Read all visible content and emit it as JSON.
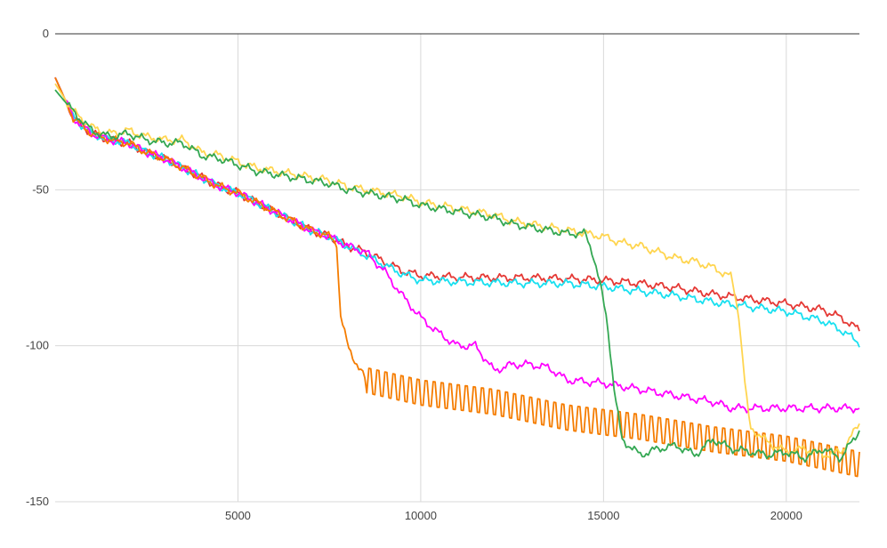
{
  "chart_data": {
    "type": "line",
    "title": "",
    "xlabel": "",
    "ylabel": "",
    "xlim": [
      0,
      22000
    ],
    "ylim": [
      -150,
      0
    ],
    "x_ticks": [
      5000,
      10000,
      15000,
      20000
    ],
    "y_ticks": [
      0,
      -50,
      -100,
      -150
    ],
    "grid": true,
    "legend": "none",
    "series": [
      {
        "color": "#e53935",
        "points": [
          [
            0,
            -14
          ],
          [
            500,
            -27
          ],
          [
            1000,
            -32
          ],
          [
            1500,
            -34
          ],
          [
            2000,
            -35
          ],
          [
            2500,
            -38
          ],
          [
            3000,
            -40
          ],
          [
            3500,
            -43
          ],
          [
            4000,
            -46
          ],
          [
            4500,
            -49
          ],
          [
            5000,
            -51
          ],
          [
            5500,
            -54
          ],
          [
            6000,
            -57
          ],
          [
            6500,
            -60
          ],
          [
            7000,
            -63
          ],
          [
            7500,
            -65
          ],
          [
            8000,
            -68
          ],
          [
            8500,
            -70
          ],
          [
            9000,
            -73
          ],
          [
            9500,
            -76
          ],
          [
            10000,
            -77.5
          ],
          [
            11000,
            -78
          ],
          [
            12000,
            -78.2
          ],
          [
            13000,
            -78.2
          ],
          [
            14000,
            -78.5
          ],
          [
            15000,
            -79
          ],
          [
            16000,
            -80
          ],
          [
            17000,
            -81.5
          ],
          [
            18000,
            -83.5
          ],
          [
            19000,
            -85
          ],
          [
            20000,
            -86.5
          ],
          [
            21000,
            -88.5
          ],
          [
            21500,
            -91
          ],
          [
            22000,
            -95
          ]
        ]
      },
      {
        "color": "#18e0f0",
        "points": [
          [
            0,
            -14
          ],
          [
            500,
            -27
          ],
          [
            1000,
            -32
          ],
          [
            1500,
            -34
          ],
          [
            2000,
            -35
          ],
          [
            2500,
            -38
          ],
          [
            3000,
            -40
          ],
          [
            3500,
            -43
          ],
          [
            4000,
            -46
          ],
          [
            4500,
            -49
          ],
          [
            5000,
            -51
          ],
          [
            5500,
            -54
          ],
          [
            6000,
            -57
          ],
          [
            6500,
            -60
          ],
          [
            7000,
            -63
          ],
          [
            7500,
            -65
          ],
          [
            8000,
            -68
          ],
          [
            8500,
            -71
          ],
          [
            9000,
            -74
          ],
          [
            9500,
            -77
          ],
          [
            10000,
            -79
          ],
          [
            11000,
            -79.5
          ],
          [
            12000,
            -79.8
          ],
          [
            13000,
            -80
          ],
          [
            14000,
            -80
          ],
          [
            15000,
            -81
          ],
          [
            16000,
            -82.5
          ],
          [
            17000,
            -84
          ],
          [
            18000,
            -86
          ],
          [
            19000,
            -87.5
          ],
          [
            20000,
            -89
          ],
          [
            21000,
            -92
          ],
          [
            21500,
            -95
          ],
          [
            22000,
            -99
          ]
        ]
      },
      {
        "color": "#ff00ff",
        "points": [
          [
            0,
            -14
          ],
          [
            500,
            -27
          ],
          [
            1000,
            -32
          ],
          [
            1500,
            -34
          ],
          [
            2000,
            -35
          ],
          [
            2500,
            -38
          ],
          [
            3000,
            -40
          ],
          [
            3500,
            -43
          ],
          [
            4000,
            -46
          ],
          [
            4500,
            -49
          ],
          [
            5000,
            -51
          ],
          [
            5500,
            -54
          ],
          [
            6000,
            -57
          ],
          [
            6500,
            -60
          ],
          [
            7000,
            -63
          ],
          [
            7500,
            -65
          ],
          [
            8000,
            -68
          ],
          [
            8500,
            -70
          ],
          [
            9000,
            -76
          ],
          [
            9500,
            -84
          ],
          [
            10000,
            -91
          ],
          [
            10500,
            -96
          ],
          [
            11000,
            -100
          ],
          [
            11500,
            -100
          ],
          [
            12000,
            -108
          ],
          [
            12500,
            -106
          ],
          [
            13000,
            -106
          ],
          [
            13500,
            -107
          ],
          [
            14000,
            -111
          ],
          [
            15000,
            -112
          ],
          [
            16000,
            -114
          ],
          [
            17000,
            -116
          ],
          [
            18000,
            -118
          ],
          [
            18500,
            -120
          ],
          [
            19000,
            -120
          ],
          [
            20000,
            -120
          ],
          [
            21000,
            -120
          ],
          [
            22000,
            -120
          ]
        ]
      },
      {
        "color": "#f57c00",
        "zigzag_from_x": 8500,
        "zigzag_amplitude": 4,
        "points": [
          [
            0,
            -14
          ],
          [
            500,
            -27
          ],
          [
            1000,
            -32
          ],
          [
            1500,
            -34
          ],
          [
            2000,
            -35
          ],
          [
            2500,
            -38
          ],
          [
            3000,
            -40
          ],
          [
            3500,
            -43
          ],
          [
            4000,
            -46
          ],
          [
            4500,
            -49
          ],
          [
            5000,
            -51
          ],
          [
            5500,
            -54
          ],
          [
            6000,
            -57
          ],
          [
            6500,
            -60
          ],
          [
            7000,
            -63
          ],
          [
            7500,
            -65
          ],
          [
            7700,
            -67
          ],
          [
            7800,
            -90
          ],
          [
            8000,
            -100
          ],
          [
            8300,
            -107
          ],
          [
            8500,
            -111
          ],
          [
            10000,
            -115
          ],
          [
            12000,
            -118
          ],
          [
            14000,
            -123
          ],
          [
            16000,
            -126
          ],
          [
            18000,
            -130
          ],
          [
            20000,
            -133
          ],
          [
            22000,
            -138
          ]
        ]
      },
      {
        "color": "#ffd54f",
        "points": [
          [
            0,
            -16
          ],
          [
            500,
            -25
          ],
          [
            1000,
            -30
          ],
          [
            1500,
            -32
          ],
          [
            2000,
            -31
          ],
          [
            2500,
            -33
          ],
          [
            3000,
            -34
          ],
          [
            3500,
            -34
          ],
          [
            4000,
            -38
          ],
          [
            4500,
            -39
          ],
          [
            5000,
            -41
          ],
          [
            5500,
            -43
          ],
          [
            6000,
            -44
          ],
          [
            6500,
            -45
          ],
          [
            7000,
            -46
          ],
          [
            7500,
            -47
          ],
          [
            8000,
            -49
          ],
          [
            8500,
            -50
          ],
          [
            9000,
            -51
          ],
          [
            9500,
            -52
          ],
          [
            10000,
            -54
          ],
          [
            10500,
            -55
          ],
          [
            11000,
            -56
          ],
          [
            11500,
            -57
          ],
          [
            12000,
            -58
          ],
          [
            12500,
            -60
          ],
          [
            13000,
            -61
          ],
          [
            13500,
            -62
          ],
          [
            14000,
            -63
          ],
          [
            14500,
            -64
          ],
          [
            15000,
            -65
          ],
          [
            15500,
            -67
          ],
          [
            16000,
            -68
          ],
          [
            16500,
            -70
          ],
          [
            17000,
            -72
          ],
          [
            17500,
            -73
          ],
          [
            18000,
            -75
          ],
          [
            18500,
            -78
          ],
          [
            18700,
            -90
          ],
          [
            18850,
            -110
          ],
          [
            19000,
            -126
          ],
          [
            19500,
            -131
          ],
          [
            20000,
            -134
          ],
          [
            20500,
            -133
          ],
          [
            21000,
            -135
          ],
          [
            21500,
            -134
          ],
          [
            22000,
            -125
          ]
        ]
      },
      {
        "color": "#34a853",
        "points": [
          [
            0,
            -18
          ],
          [
            500,
            -25
          ],
          [
            1000,
            -31
          ],
          [
            1500,
            -33
          ],
          [
            2000,
            -32
          ],
          [
            2500,
            -34
          ],
          [
            3000,
            -35
          ],
          [
            3500,
            -35
          ],
          [
            4000,
            -39
          ],
          [
            4500,
            -40
          ],
          [
            5000,
            -42
          ],
          [
            5500,
            -44
          ],
          [
            6000,
            -45
          ],
          [
            6500,
            -46
          ],
          [
            7000,
            -47
          ],
          [
            7500,
            -48
          ],
          [
            8000,
            -50
          ],
          [
            8500,
            -51
          ],
          [
            9000,
            -52
          ],
          [
            9500,
            -53
          ],
          [
            10000,
            -55
          ],
          [
            10500,
            -56
          ],
          [
            11000,
            -57
          ],
          [
            11500,
            -58
          ],
          [
            12000,
            -59
          ],
          [
            12500,
            -61
          ],
          [
            13000,
            -62
          ],
          [
            13500,
            -63
          ],
          [
            14000,
            -64
          ],
          [
            14500,
            -64
          ],
          [
            14700,
            -70
          ],
          [
            14900,
            -80
          ],
          [
            15100,
            -92
          ],
          [
            15300,
            -115
          ],
          [
            15500,
            -130
          ],
          [
            16000,
            -135
          ],
          [
            16500,
            -133
          ],
          [
            17000,
            -132
          ],
          [
            17500,
            -135
          ],
          [
            18000,
            -130
          ],
          [
            18500,
            -133
          ],
          [
            19000,
            -134
          ],
          [
            19500,
            -135
          ],
          [
            20000,
            -134
          ],
          [
            20500,
            -136
          ],
          [
            21000,
            -133
          ],
          [
            21500,
            -136
          ],
          [
            22000,
            -127
          ]
        ]
      }
    ]
  }
}
